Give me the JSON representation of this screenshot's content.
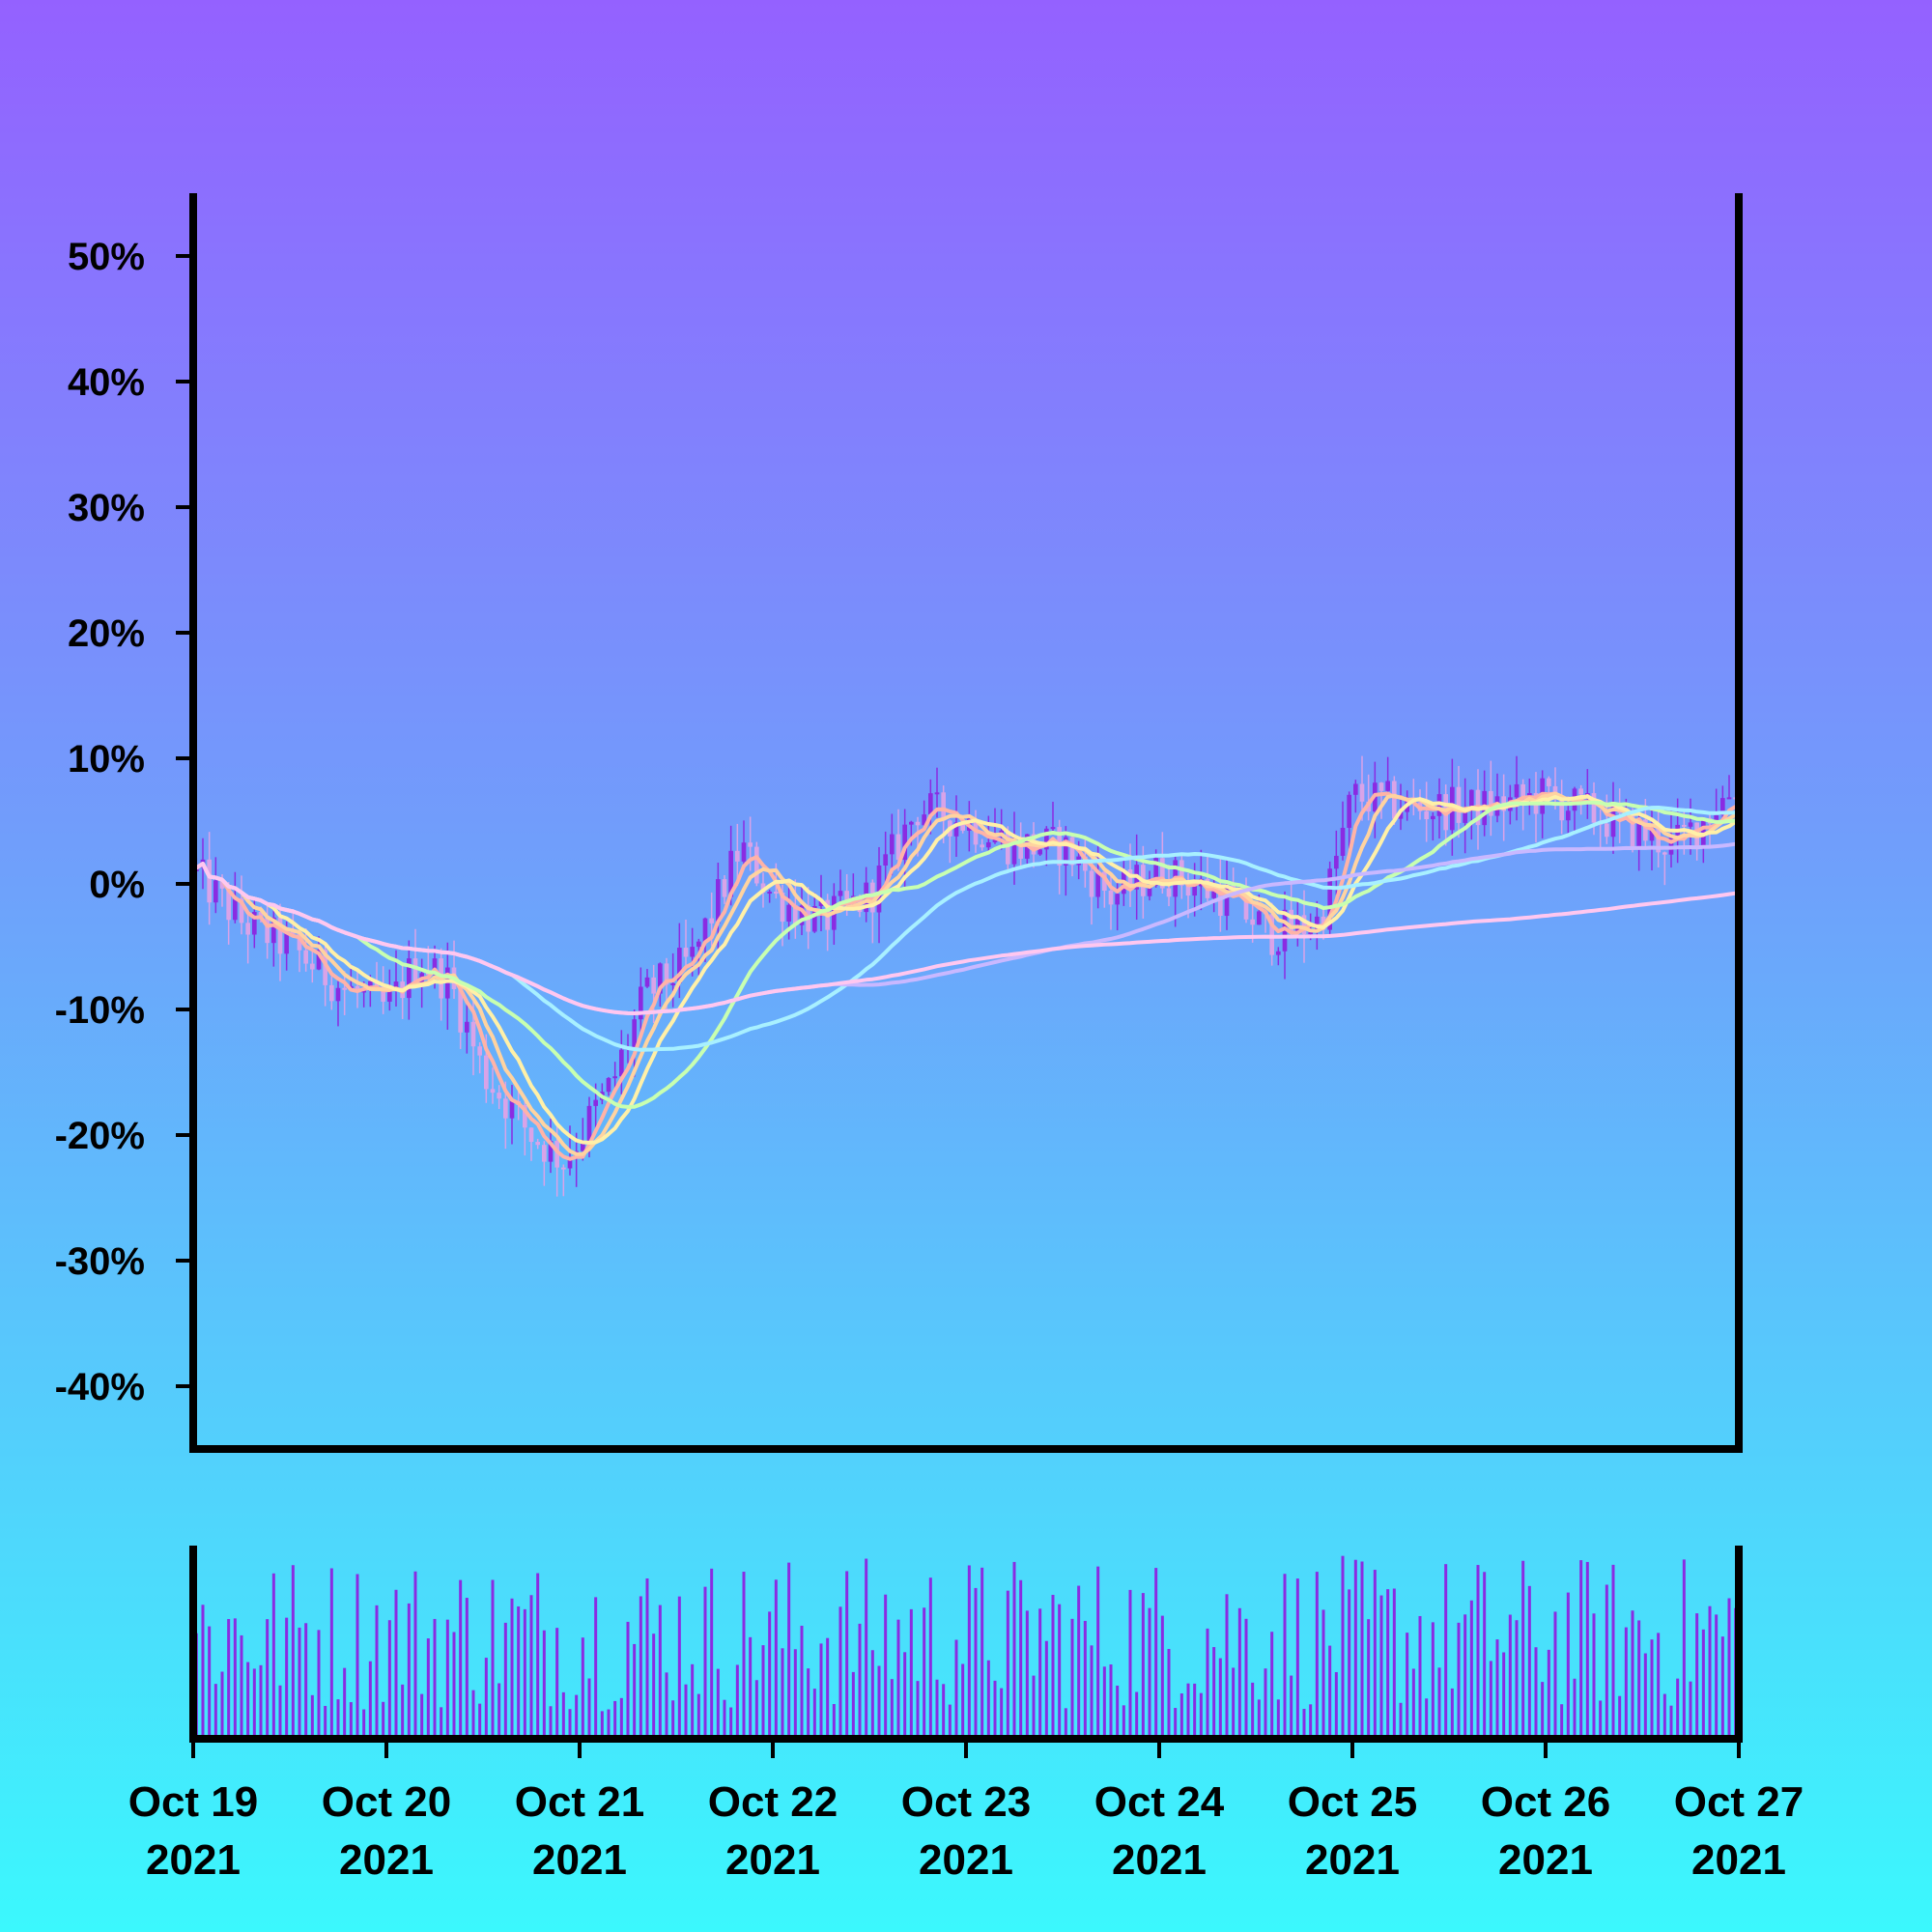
{
  "chart_data": {
    "type": "candlestick",
    "y_axis": {
      "format": "percent",
      "range": [
        -0.45,
        0.55
      ],
      "ticks": [
        0.5,
        0.4,
        0.3,
        0.2,
        0.1,
        0.0,
        -0.1,
        -0.2,
        -0.3,
        -0.4
      ],
      "tick_labels": [
        "50%",
        "40%",
        "30%",
        "20%",
        "10%",
        "0%",
        "-10%",
        "-20%",
        "-30%",
        "-40%"
      ]
    },
    "x_axis": {
      "range": [
        "2021-10-19",
        "2021-10-27"
      ],
      "ticks": [
        {
          "date": "2021-10-19",
          "line1": "Oct 19",
          "line2": "2021"
        },
        {
          "date": "2021-10-20",
          "line1": "Oct 20",
          "line2": "2021"
        },
        {
          "date": "2021-10-21",
          "line1": "Oct 21",
          "line2": "2021"
        },
        {
          "date": "2021-10-22",
          "line1": "Oct 22",
          "line2": "2021"
        },
        {
          "date": "2021-10-23",
          "line1": "Oct 23",
          "line2": "2021"
        },
        {
          "date": "2021-10-24",
          "line1": "Oct 24",
          "line2": "2021"
        },
        {
          "date": "2021-10-25",
          "line1": "Oct 25",
          "line2": "2021"
        },
        {
          "date": "2021-10-26",
          "line1": "Oct 26",
          "line2": "2021"
        },
        {
          "date": "2021-10-27",
          "line1": "Oct 27",
          "line2": "2021"
        }
      ]
    },
    "price_series": [
      [
        "2021-10-19",
        0.01
      ],
      [
        "2021-10-19T06:00",
        -0.03
      ],
      [
        "2021-10-19T12:00",
        -0.05
      ],
      [
        "2021-10-19T18:00",
        -0.08
      ],
      [
        "2021-10-20",
        -0.1
      ],
      [
        "2021-10-20T04:00",
        -0.06
      ],
      [
        "2021-10-20T08:00",
        -0.08
      ],
      [
        "2021-10-20T12:00",
        -0.15
      ],
      [
        "2021-10-20T18:00",
        -0.2
      ],
      [
        "2021-10-20T22:00",
        -0.22
      ],
      [
        "2021-10-21",
        -0.2
      ],
      [
        "2021-10-21T04:00",
        -0.16
      ],
      [
        "2021-10-21T08:00",
        -0.09
      ],
      [
        "2021-10-21T14:00",
        -0.06
      ],
      [
        "2021-10-21T20:00",
        0.03
      ],
      [
        "2021-10-22",
        -0.01
      ],
      [
        "2021-10-22T06:00",
        -0.03
      ],
      [
        "2021-10-22T12:00",
        -0.01
      ],
      [
        "2021-10-22T18:00",
        0.06
      ],
      [
        "2021-10-23",
        0.05
      ],
      [
        "2021-10-23T06:00",
        0.03
      ],
      [
        "2021-10-23T12:00",
        0.03
      ],
      [
        "2021-10-23T18:00",
        -0.01
      ],
      [
        "2021-10-24",
        0.01
      ],
      [
        "2021-10-24T08:00",
        -0.01
      ],
      [
        "2021-10-24T14:00",
        -0.04
      ],
      [
        "2021-10-24T20:00",
        -0.03
      ],
      [
        "2021-10-25",
        0.07
      ],
      [
        "2021-10-25T08:00",
        0.06
      ],
      [
        "2021-10-25T16:00",
        0.06
      ],
      [
        "2021-10-26",
        0.07
      ],
      [
        "2021-10-26T08:00",
        0.05
      ],
      [
        "2021-10-26T16:00",
        0.03
      ],
      [
        "2021-10-27",
        0.08
      ]
    ],
    "series": [
      {
        "window": 5,
        "color": "#ffb3a7"
      },
      {
        "window": 8,
        "color": "#ffd3a0"
      },
      {
        "window": 12,
        "color": "#fff0a8"
      },
      {
        "window": 26,
        "color": "#c8ffb0"
      },
      {
        "window": 50,
        "color": "#a8f0ff"
      },
      {
        "window": 100,
        "color": "#c9b8ff"
      },
      {
        "window": 200,
        "color": "#ffc7f0"
      }
    ],
    "volume": {
      "shown": true,
      "color": "#8a2be2"
    },
    "candle_colors": {
      "up": "#8a2be2",
      "down": "#d9a3e8"
    },
    "grid": false,
    "legend": "none"
  }
}
